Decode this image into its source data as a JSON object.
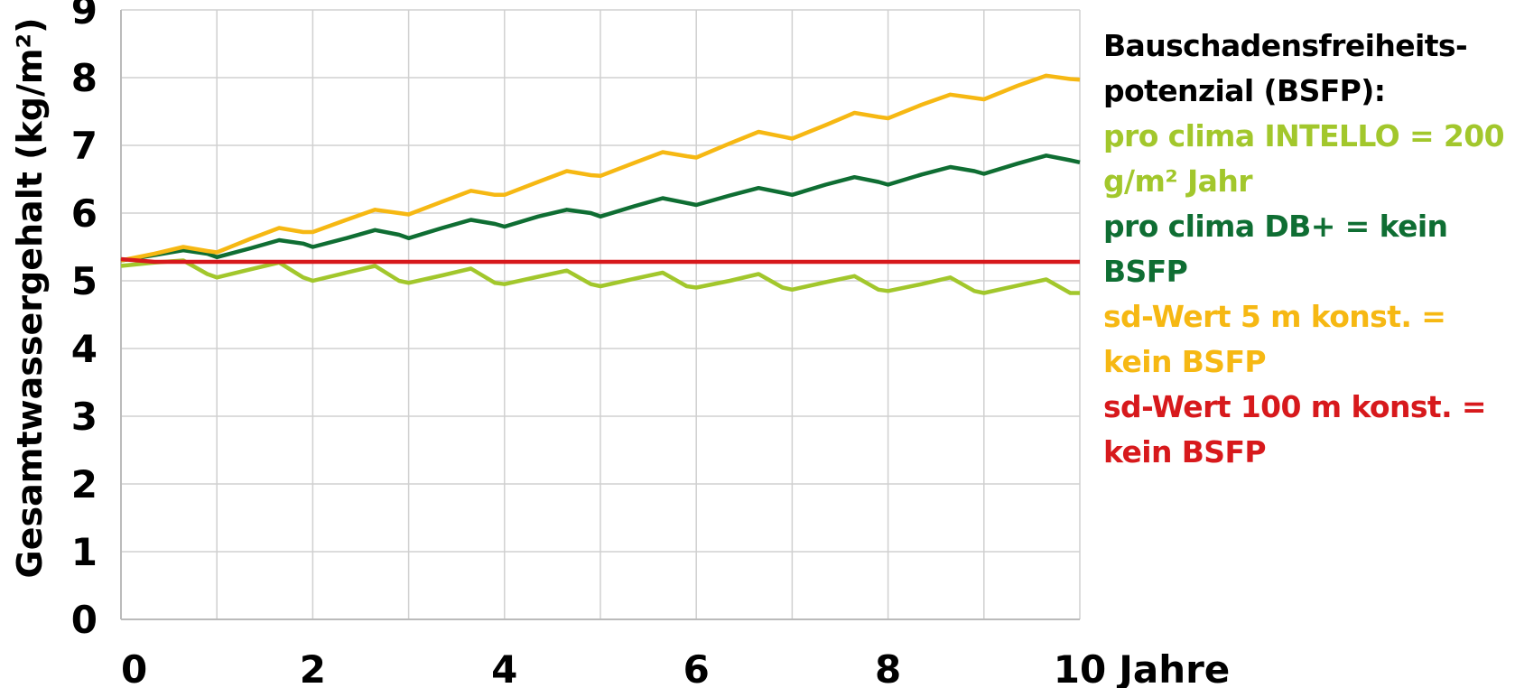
{
  "chart_data": {
    "type": "line",
    "y_label": "Gesamtwassergehalt (kg/m²)",
    "x_label": "Jahre",
    "legend_title": "Bauschadensfreiheits-potenzial (BSFP):",
    "x": [
      0,
      0.35,
      0.65,
      0.9,
      1,
      1.35,
      1.65,
      1.9,
      2,
      2.35,
      2.65,
      2.9,
      3,
      3.35,
      3.65,
      3.9,
      4,
      4.35,
      4.65,
      4.9,
      5,
      5.35,
      5.65,
      5.9,
      6,
      6.35,
      6.65,
      6.9,
      7,
      7.35,
      7.65,
      7.9,
      8,
      8.35,
      8.65,
      8.9,
      9,
      9.35,
      9.65,
      9.9,
      10
    ],
    "series": [
      {
        "name": "pro clima INTELLO = 200 g/m² Jahr",
        "color": "#a2c72c",
        "values": [
          5.22,
          5.27,
          5.3,
          5.1,
          5.05,
          5.17,
          5.27,
          5.05,
          5.0,
          5.12,
          5.22,
          5.0,
          4.97,
          5.08,
          5.18,
          4.97,
          4.95,
          5.06,
          5.15,
          4.95,
          4.92,
          5.03,
          5.12,
          4.92,
          4.9,
          5.0,
          5.1,
          4.9,
          4.87,
          4.98,
          5.07,
          4.87,
          4.85,
          4.95,
          5.05,
          4.85,
          4.82,
          4.93,
          5.02,
          4.82,
          4.82
        ]
      },
      {
        "name": "pro clima DB+ = kein BSFP",
        "color": "#0f6e33",
        "values": [
          5.3,
          5.38,
          5.45,
          5.4,
          5.35,
          5.48,
          5.6,
          5.55,
          5.5,
          5.63,
          5.75,
          5.68,
          5.63,
          5.78,
          5.9,
          5.84,
          5.8,
          5.95,
          6.05,
          6.0,
          5.95,
          6.1,
          6.22,
          6.15,
          6.12,
          6.26,
          6.37,
          6.3,
          6.27,
          6.42,
          6.53,
          6.46,
          6.42,
          6.57,
          6.68,
          6.62,
          6.58,
          6.73,
          6.85,
          6.78,
          6.75
        ]
      },
      {
        "name": "sd-Wert 5 m konst. = kein BSFP",
        "color": "#f6b813",
        "values": [
          5.3,
          5.4,
          5.5,
          5.44,
          5.42,
          5.62,
          5.78,
          5.72,
          5.72,
          5.9,
          6.05,
          6.0,
          5.98,
          6.17,
          6.33,
          6.27,
          6.27,
          6.46,
          6.62,
          6.56,
          6.55,
          6.74,
          6.9,
          6.84,
          6.82,
          7.03,
          7.2,
          7.13,
          7.1,
          7.3,
          7.48,
          7.42,
          7.4,
          7.6,
          7.75,
          7.7,
          7.68,
          7.88,
          8.03,
          7.98,
          7.97
        ]
      },
      {
        "name": "sd-Wert 100 m konst. = kein BSFP",
        "color": "#d7191c",
        "values": [
          5.32,
          5.28,
          5.28,
          5.28,
          5.28,
          5.28,
          5.28,
          5.28,
          5.28,
          5.28,
          5.28,
          5.28,
          5.28,
          5.28,
          5.28,
          5.28,
          5.28,
          5.28,
          5.28,
          5.28,
          5.28,
          5.28,
          5.28,
          5.28,
          5.28,
          5.28,
          5.28,
          5.28,
          5.28,
          5.28,
          5.28,
          5.28,
          5.28,
          5.28,
          5.28,
          5.28,
          5.28,
          5.28,
          5.28,
          5.28,
          5.28
        ]
      }
    ],
    "xlim": [
      0,
      10
    ],
    "xticks": [
      0,
      2,
      4,
      6,
      8,
      10
    ],
    "xminorticks": [
      1,
      3,
      5,
      7,
      9
    ],
    "ylim": [
      0,
      9
    ],
    "yticks": [
      0,
      1,
      2,
      3,
      4,
      5,
      6,
      7,
      8,
      9
    ],
    "grid": true,
    "legend_position": "right"
  }
}
